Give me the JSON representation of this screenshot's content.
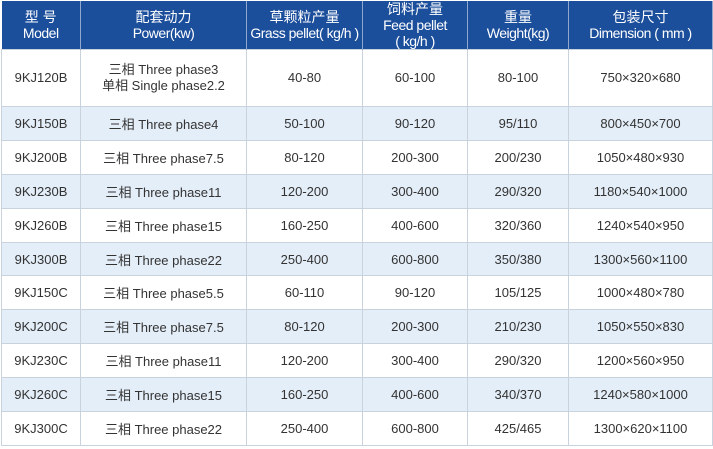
{
  "headers": [
    {
      "zh": "型 号",
      "en": "Model"
    },
    {
      "zh": "配套动力",
      "en": "Power(kw)"
    },
    {
      "zh": "草颗粒产量",
      "en": "Grass pellet( kg/h )"
    },
    {
      "zh": "饲料产量",
      "en": "Feed pellet",
      "en2": "( kg/h )"
    },
    {
      "zh": "重量",
      "en": "Weight(kg)"
    },
    {
      "zh": "包装尺寸",
      "en": "Dimension ( mm )"
    }
  ],
  "rows": [
    {
      "model": "9KJ120B",
      "power": "三相 Three phase3",
      "power2": "单相 Single phase2.2",
      "grass": "40-80",
      "feed": "60-100",
      "weight": "80-100",
      "dim": "750×320×680"
    },
    {
      "model": "9KJ150B",
      "power": "三相 Three phase4",
      "grass": "50-100",
      "feed": "90-120",
      "weight": "95/110",
      "dim": "800×450×700"
    },
    {
      "model": "9KJ200B",
      "power": "三相 Three phase7.5",
      "grass": "80-120",
      "feed": "200-300",
      "weight": "200/230",
      "dim": "1050×480×930"
    },
    {
      "model": "9KJ230B",
      "power": "三相 Three phase11",
      "grass": "120-200",
      "feed": "300-400",
      "weight": "290/320",
      "dim": "1180×540×1000"
    },
    {
      "model": "9KJ260B",
      "power": "三相 Three phase15",
      "grass": "160-250",
      "feed": "400-600",
      "weight": "320/360",
      "dim": "1240×540×950"
    },
    {
      "model": "9KJ300B",
      "power": "三相 Three phase22",
      "grass": "250-400",
      "feed": "600-800",
      "weight": "350/380",
      "dim": "1300×560×1100"
    },
    {
      "model": "9KJ150C",
      "power": "三相 Three phase5.5",
      "grass": "60-110",
      "feed": "90-120",
      "weight": "105/125",
      "dim": "1000×480×780"
    },
    {
      "model": "9KJ200C",
      "power": "三相 Three phase7.5",
      "grass": "80-120",
      "feed": "200-300",
      "weight": "210/230",
      "dim": "1050×550×830"
    },
    {
      "model": "9KJ230C",
      "power": "三相 Three phase11",
      "grass": "120-200",
      "feed": "300-400",
      "weight": "290/320",
      "dim": "1200×560×950"
    },
    {
      "model": "9KJ260C",
      "power": "三相 Three phase15",
      "grass": "160-250",
      "feed": "400-600",
      "weight": "340/370",
      "dim": "1240×580×1000"
    },
    {
      "model": "9KJ300C",
      "power": "三相 Three phase22",
      "grass": "250-400",
      "feed": "600-800",
      "weight": "425/465",
      "dim": "1300×620×1100"
    }
  ],
  "colors": {
    "header": "#1b4e9b",
    "alt_row": "#e4eef8"
  }
}
